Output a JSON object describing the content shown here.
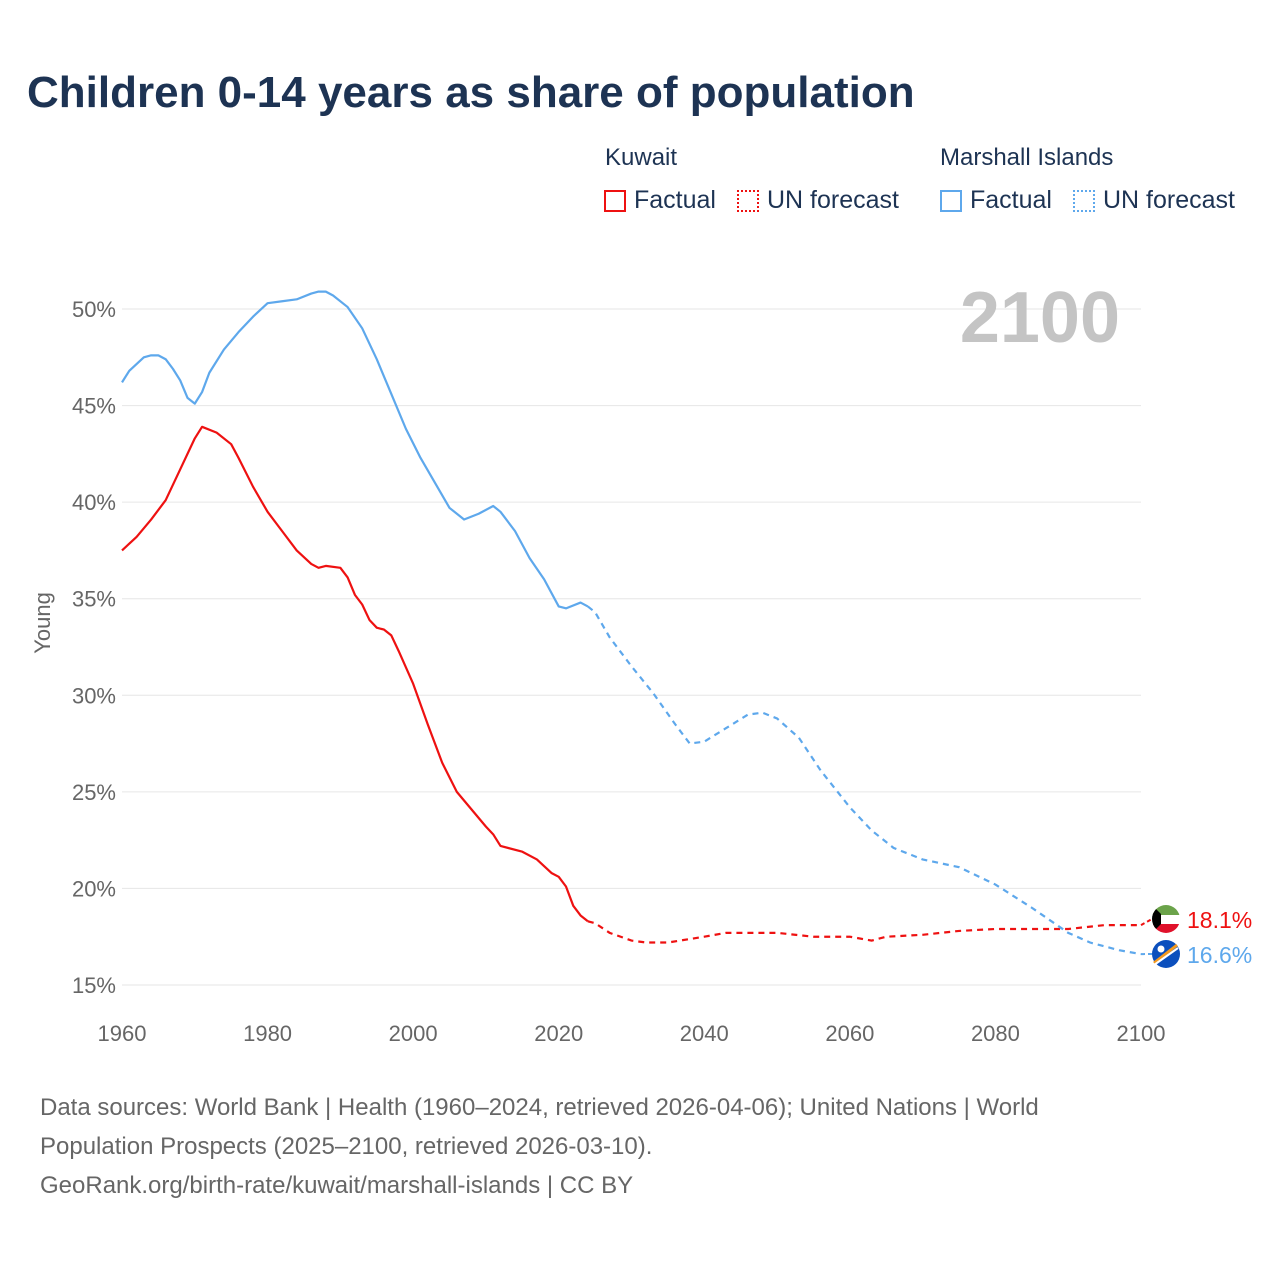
{
  "chart_data": {
    "type": "line",
    "title": "Children 0-14 years as share of population",
    "ylabel": "Young",
    "xlabel": "",
    "xlim": [
      1960,
      2100
    ],
    "ylim": [
      15,
      51
    ],
    "xticks": [
      1960,
      1980,
      2000,
      2020,
      2040,
      2060,
      2080,
      2100
    ],
    "xtick_labels": [
      "1960",
      "1980",
      "2000",
      "2020",
      "2040",
      "2060",
      "2080",
      "2100"
    ],
    "yticks": [
      15,
      20,
      25,
      30,
      35,
      40,
      45,
      50
    ],
    "ytick_labels": [
      "15%",
      "20%",
      "25%",
      "30%",
      "35%",
      "40%",
      "45%",
      "50%"
    ],
    "grid": true,
    "year_label": "2100",
    "forecast_start": 2024,
    "legend": {
      "groups": [
        {
          "name": "Kuwait",
          "factual": "Factual",
          "forecast": "UN forecast"
        },
        {
          "name": "Marshall Islands",
          "factual": "Factual",
          "forecast": "UN forecast"
        }
      ],
      "placement": "top-right"
    },
    "series": [
      {
        "name": "Kuwait",
        "color": "#ee1111",
        "end_label": "18.1%",
        "flag": "kuwait-flag",
        "x": [
          1960,
          1962,
          1964,
          1966,
          1968,
          1970,
          1971,
          1973,
          1975,
          1976,
          1978,
          1980,
          1982,
          1984,
          1986,
          1987,
          1988,
          1990,
          1991,
          1992,
          1993,
          1994,
          1995,
          1996,
          1997,
          1998,
          2000,
          2002,
          2004,
          2006,
          2008,
          2010,
          2011,
          2012,
          2015,
          2017,
          2019,
          2020,
          2021,
          2022,
          2023,
          2024,
          2025,
          2027,
          2030,
          2032,
          2035,
          2040,
          2043,
          2045,
          2050,
          2055,
          2060,
          2063,
          2065,
          2070,
          2075,
          2080,
          2085,
          2090,
          2095,
          2100
        ],
        "y": [
          37.5,
          38.2,
          39.1,
          40.1,
          41.7,
          43.3,
          43.9,
          43.6,
          43.0,
          42.3,
          40.8,
          39.5,
          38.5,
          37.5,
          36.8,
          36.6,
          36.7,
          36.6,
          36.1,
          35.2,
          34.7,
          33.9,
          33.5,
          33.4,
          33.1,
          32.3,
          30.6,
          28.5,
          26.5,
          25.0,
          24.1,
          23.2,
          22.8,
          22.2,
          21.9,
          21.5,
          20.8,
          20.6,
          20.1,
          19.1,
          18.6,
          18.3,
          18.2,
          17.7,
          17.3,
          17.2,
          17.2,
          17.5,
          17.7,
          17.7,
          17.7,
          17.5,
          17.5,
          17.3,
          17.5,
          17.6,
          17.8,
          17.9,
          17.9,
          17.9,
          18.1,
          18.1
        ]
      },
      {
        "name": "Marshall Islands",
        "color": "#5ea8ec",
        "end_label": "16.6%",
        "flag": "marshall-islands-flag",
        "x": [
          1960,
          1961,
          1963,
          1964,
          1965,
          1966,
          1967,
          1968,
          1969,
          1970,
          1971,
          1972,
          1974,
          1976,
          1978,
          1980,
          1982,
          1984,
          1986,
          1987,
          1988,
          1989,
          1991,
          1993,
          1995,
          1997,
          1999,
          2001,
          2003,
          2005,
          2007,
          2009,
          2011,
          2012,
          2014,
          2016,
          2018,
          2020,
          2021,
          2023,
          2024,
          2025,
          2027,
          2030,
          2033,
          2036,
          2038,
          2040,
          2043,
          2046,
          2048,
          2050,
          2053,
          2056,
          2060,
          2063,
          2066,
          2070,
          2075,
          2080,
          2085,
          2090,
          2093,
          2097,
          2100
        ],
        "y": [
          46.2,
          46.8,
          47.5,
          47.6,
          47.6,
          47.4,
          46.9,
          46.3,
          45.4,
          45.1,
          45.7,
          46.7,
          47.9,
          48.8,
          49.6,
          50.3,
          50.4,
          50.5,
          50.8,
          50.9,
          50.9,
          50.7,
          50.1,
          49.0,
          47.4,
          45.6,
          43.8,
          42.3,
          41.0,
          39.7,
          39.1,
          39.4,
          39.8,
          39.5,
          38.5,
          37.1,
          36.0,
          34.6,
          34.5,
          34.8,
          34.6,
          34.3,
          33.0,
          31.5,
          30.1,
          28.5,
          27.5,
          27.6,
          28.3,
          29.0,
          29.1,
          28.8,
          27.8,
          26.1,
          24.2,
          23.0,
          22.1,
          21.5,
          21.1,
          20.2,
          19.0,
          17.7,
          17.2,
          16.8,
          16.6
        ]
      }
    ]
  },
  "footer": {
    "line1": "Data sources: World Bank | Health (1960–2024, retrieved 2026-04-06); United Nations | World",
    "line2": "Population Prospects (2025–2100, retrieved 2026-03-10).",
    "line3": "GeoRank.org/birth-rate/kuwait/marshall-islands | CC BY"
  }
}
